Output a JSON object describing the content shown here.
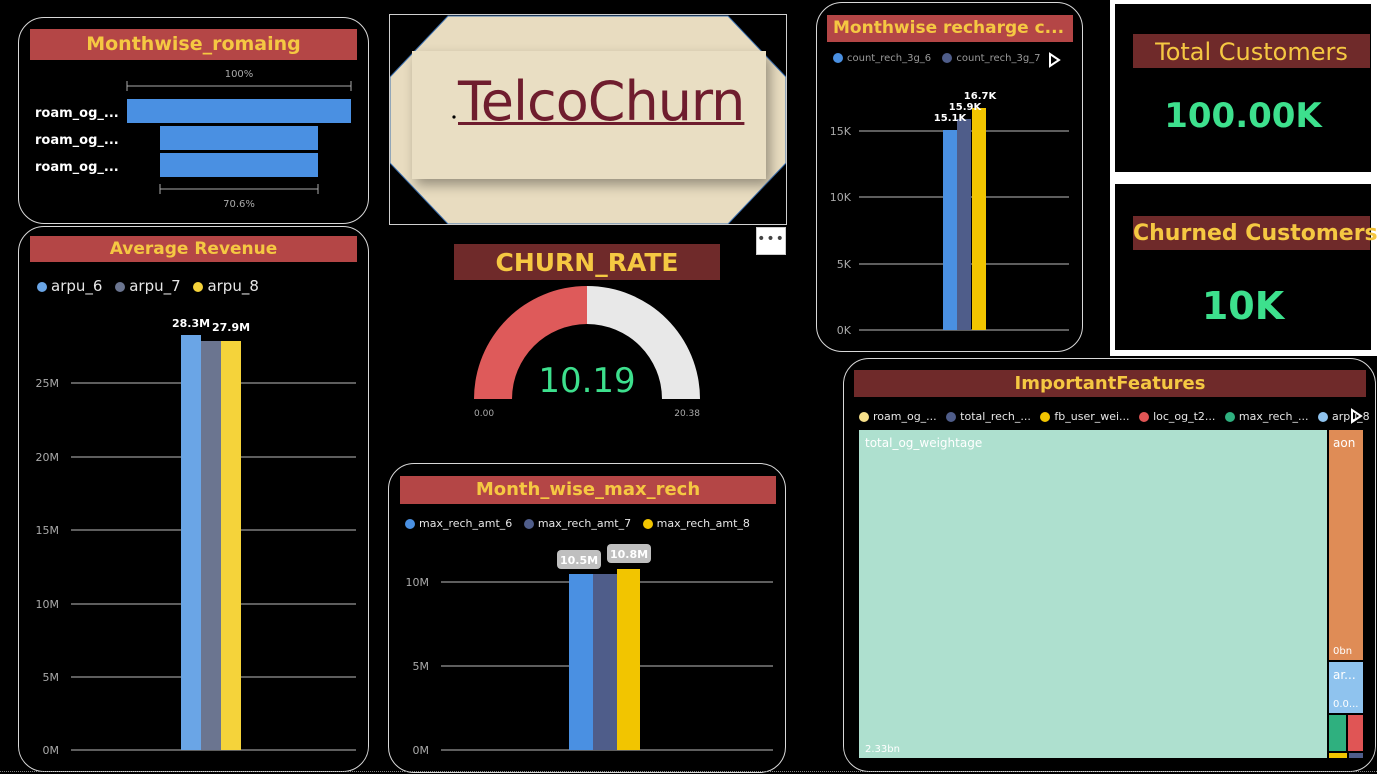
{
  "colors": {
    "title_bg": "#b44646",
    "title_text": "#f5c842",
    "kpi_title_bg": "#6f2a2a",
    "kpi_value": "#3de08d",
    "series_1": "#4a90e2",
    "series_2": "#4f5d8a",
    "series_3": "#f2c500"
  },
  "logo": {
    "text": "TelcoChurn"
  },
  "more_options_icon": "ellipsis-icon",
  "roaming": {
    "title": "Monthwise_romaing",
    "top_label": "100%",
    "bottom_label": "70.6%",
    "rows": [
      {
        "label": "roam_og_...",
        "value_pct": 100
      },
      {
        "label": "roam_og_...",
        "value_pct": 70.6
      },
      {
        "label": "roam_og_...",
        "value_pct": 70.6
      }
    ]
  },
  "avg_revenue": {
    "title": "Average Revenue",
    "legend": [
      "arpu_6",
      "arpu_7",
      "arpu_8"
    ]
  },
  "churn_rate": {
    "title": "CHURN_RATE",
    "value": "10.19",
    "min_label": "0.00",
    "max_label": "20.38",
    "fraction": 0.5
  },
  "max_rech": {
    "title": "Month_wise_max_rech",
    "legend": [
      "max_rech_amt_6",
      "max_rech_amt_7",
      "max_rech_amt_8"
    ]
  },
  "recharge_3g": {
    "title": "Monthwise recharge c...",
    "legend": [
      "count_rech_3g_6",
      "count_rech_3g_7"
    ]
  },
  "kpis": {
    "total": {
      "title": "Total Customers",
      "value": "100.00K"
    },
    "churned": {
      "title": "Churned Customers",
      "value": "10K"
    }
  },
  "features": {
    "title": "ImportantFeatures",
    "legend": [
      {
        "label": "roam_og_...",
        "color": "#f7e08a"
      },
      {
        "label": "total_rech_...",
        "color": "#4f5d8a"
      },
      {
        "label": "fb_user_wei...",
        "color": "#f2c500"
      },
      {
        "label": "loc_og_t2...",
        "color": "#e05555"
      },
      {
        "label": "max_rech_...",
        "color": "#2fb07f"
      },
      {
        "label": "arpu_8",
        "color": "#8fc3ee"
      },
      {
        "label": "aon",
        "color": "#e08d55"
      }
    ],
    "tiles": {
      "main_label": "total_og_weightage",
      "main_value": "2.33bn",
      "aon_label": "aon",
      "aon_value": "0bn",
      "arpu_label": "ar...",
      "arpu_value": "0.0..."
    }
  },
  "chart_data": [
    {
      "type": "bar",
      "title": "Monthwise_romaing",
      "categories": [
        "roam_og_...",
        "roam_og_...",
        "roam_og_..."
      ],
      "values": [
        100,
        70.6,
        70.6
      ],
      "unit": "%"
    },
    {
      "type": "bar",
      "title": "Average Revenue",
      "categories": [
        ""
      ],
      "series": [
        {
          "name": "arpu_6",
          "values": [
            28.3
          ]
        },
        {
          "name": "arpu_7",
          "values": [
            27.9
          ]
        },
        {
          "name": "arpu_8",
          "values": [
            27.9
          ]
        }
      ],
      "data_labels": [
        "28.3M",
        "27.9M"
      ],
      "yticks": [
        "0M",
        "5M",
        "10M",
        "15M",
        "20M",
        "25M"
      ],
      "ylim": [
        0,
        30
      ],
      "unit": "M",
      "grid": true
    },
    {
      "type": "bar",
      "title": "Month_wise_max_rech",
      "categories": [
        ""
      ],
      "series": [
        {
          "name": "max_rech_amt_6",
          "values": [
            10.5
          ]
        },
        {
          "name": "max_rech_amt_7",
          "values": [
            10.5
          ]
        },
        {
          "name": "max_rech_amt_8",
          "values": [
            10.8
          ]
        }
      ],
      "data_labels": [
        "10.5M",
        "10.8M"
      ],
      "yticks": [
        "0M",
        "5M",
        "10M"
      ],
      "ylim": [
        0,
        12
      ],
      "unit": "M",
      "grid": true
    },
    {
      "type": "bar",
      "title": "Monthwise recharge c...",
      "categories": [
        ""
      ],
      "series": [
        {
          "name": "count_rech_3g_6",
          "values": [
            15.1
          ]
        },
        {
          "name": "count_rech_3g_7",
          "values": [
            15.9
          ]
        },
        {
          "name": "",
          "values": [
            16.7
          ]
        }
      ],
      "data_labels": [
        "15.1K",
        "15.9K",
        "16.7K"
      ],
      "yticks": [
        "0K",
        "5K",
        "10K",
        "15K"
      ],
      "ylim": [
        0,
        20
      ],
      "unit": "K",
      "grid": true
    }
  ]
}
